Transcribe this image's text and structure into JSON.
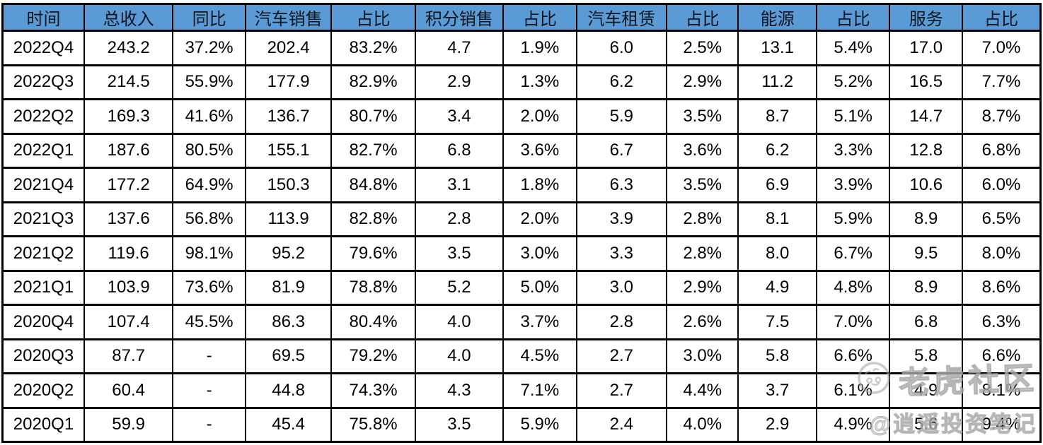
{
  "chart_data": {
    "type": "table",
    "columns": [
      "时间",
      "总收入",
      "同比",
      "汽车销售",
      "占比",
      "积分销售",
      "占比",
      "汽车租赁",
      "占比",
      "能源",
      "占比",
      "服务",
      "占比"
    ],
    "rows": [
      [
        "2022Q4",
        "243.2",
        "37.2%",
        "202.4",
        "83.2%",
        "4.7",
        "1.9%",
        "6.0",
        "2.5%",
        "13.1",
        "5.4%",
        "17.0",
        "7.0%"
      ],
      [
        "2022Q3",
        "214.5",
        "55.9%",
        "177.9",
        "82.9%",
        "2.9",
        "1.3%",
        "6.2",
        "2.9%",
        "11.2",
        "5.2%",
        "16.5",
        "7.7%"
      ],
      [
        "2022Q2",
        "169.3",
        "41.6%",
        "136.7",
        "80.7%",
        "3.4",
        "2.0%",
        "5.9",
        "3.5%",
        "8.7",
        "5.1%",
        "14.7",
        "8.7%"
      ],
      [
        "2022Q1",
        "187.6",
        "80.5%",
        "155.1",
        "82.7%",
        "6.8",
        "3.6%",
        "6.7",
        "3.6%",
        "6.2",
        "3.3%",
        "12.8",
        "6.8%"
      ],
      [
        "2021Q4",
        "177.2",
        "64.9%",
        "150.3",
        "84.8%",
        "3.1",
        "1.8%",
        "6.3",
        "3.5%",
        "6.9",
        "3.9%",
        "10.6",
        "6.0%"
      ],
      [
        "2021Q3",
        "137.6",
        "56.8%",
        "113.9",
        "82.8%",
        "2.8",
        "2.0%",
        "3.9",
        "2.8%",
        "8.1",
        "5.9%",
        "8.9",
        "6.5%"
      ],
      [
        "2021Q2",
        "119.6",
        "98.1%",
        "95.2",
        "79.6%",
        "3.5",
        "3.0%",
        "3.3",
        "2.8%",
        "8.0",
        "6.7%",
        "9.5",
        "8.0%"
      ],
      [
        "2021Q1",
        "103.9",
        "73.6%",
        "81.9",
        "78.8%",
        "5.2",
        "5.0%",
        "3.0",
        "2.9%",
        "4.9",
        "4.8%",
        "8.9",
        "8.6%"
      ],
      [
        "2020Q4",
        "107.4",
        "45.5%",
        "86.3",
        "80.4%",
        "4.0",
        "3.7%",
        "2.8",
        "2.6%",
        "7.5",
        "7.0%",
        "6.8",
        "6.3%"
      ],
      [
        "2020Q3",
        "87.7",
        "-",
        "69.5",
        "79.2%",
        "4.0",
        "4.5%",
        "2.7",
        "3.0%",
        "5.8",
        "6.6%",
        "5.8",
        "6.6%"
      ],
      [
        "2020Q2",
        "60.4",
        "-",
        "44.8",
        "74.3%",
        "4.3",
        "7.1%",
        "2.7",
        "4.4%",
        "3.7",
        "6.1%",
        "4.9",
        "8.1%"
      ],
      [
        "2020Q1",
        "59.9",
        "-",
        "45.4",
        "75.8%",
        "3.5",
        "5.9%",
        "2.4",
        "4.0%",
        "2.9",
        "4.9%",
        "5.6",
        "9.4%"
      ]
    ],
    "title": "",
    "legend_position": "none",
    "grid": true
  },
  "watermark": {
    "brand": "老虎社区",
    "handle": "@逍遥投资笔记",
    "logo_icon": "tiger-logo-icon"
  },
  "colors": {
    "header_bg": "#5B9BD5",
    "header_text": "#0b1520",
    "body_text": "#000000",
    "border": "#000000",
    "watermark_gray": "#BDBDBD"
  }
}
